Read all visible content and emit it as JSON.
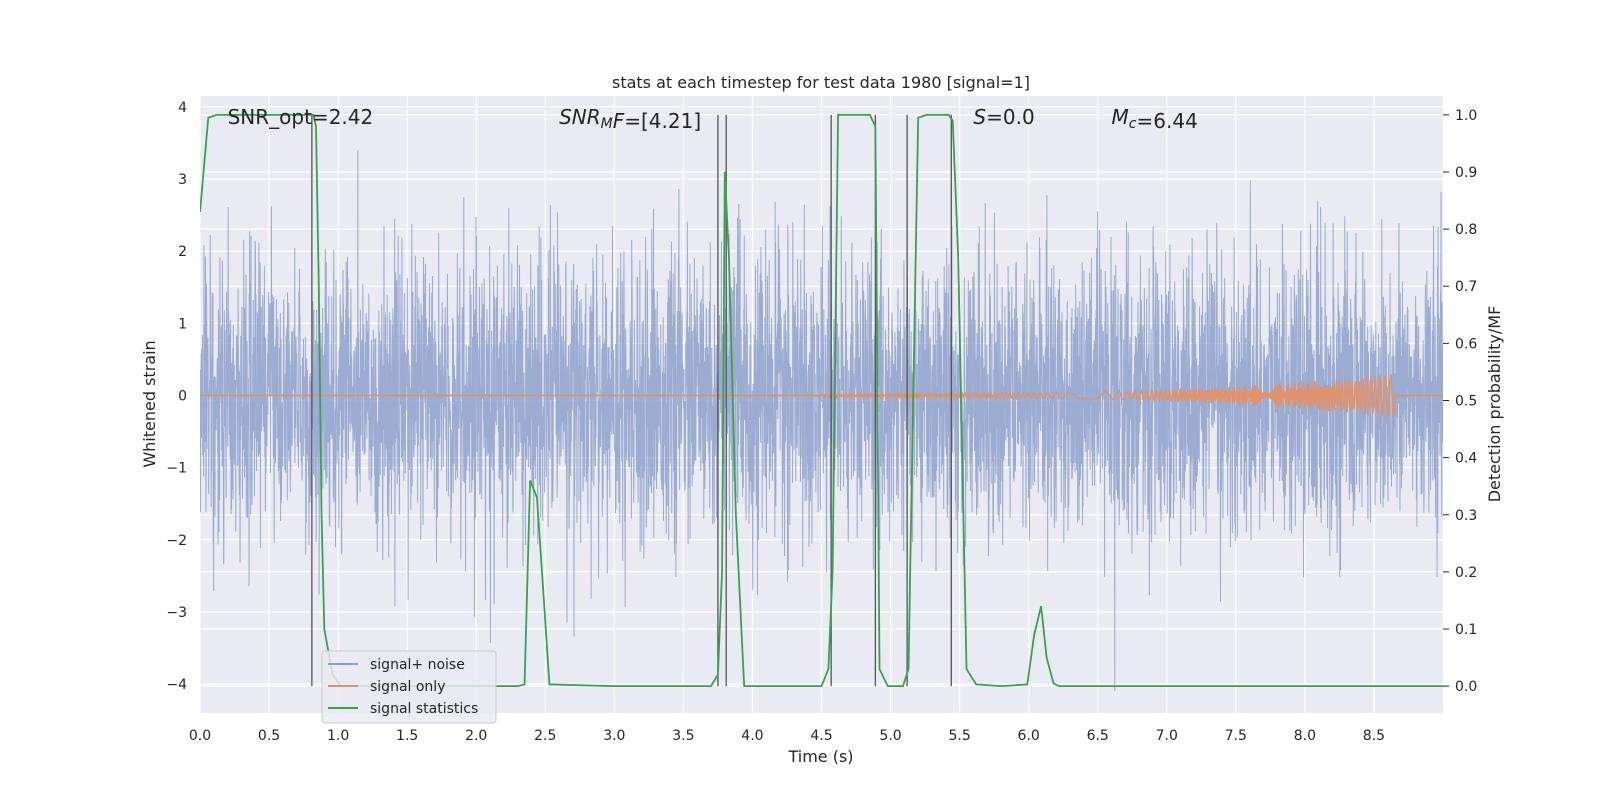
{
  "chart_data": {
    "type": "line",
    "title": "stats at each timestep for test data 1980 [signal=1]",
    "xlabel": "Time (s)",
    "ylabel": "Whitened strain",
    "y2label": "Detection probability/MF",
    "xlim": [
      0.0,
      9.0
    ],
    "ylim": [
      -4.4,
      4.15
    ],
    "y2lim": [
      -0.047,
      1.033
    ],
    "x_ticks": [
      "0.0",
      "0.5",
      "1.0",
      "1.5",
      "2.0",
      "2.5",
      "3.0",
      "3.5",
      "4.0",
      "4.5",
      "5.0",
      "5.5",
      "6.0",
      "6.5",
      "7.0",
      "7.5",
      "8.0",
      "8.5"
    ],
    "y_ticks": [
      "4",
      "3",
      "2",
      "1",
      "0",
      "−1",
      "−2",
      "−3",
      "−4"
    ],
    "y2_ticks": [
      "1.0",
      "0.9",
      "0.8",
      "0.7",
      "0.6",
      "0.5",
      "0.4",
      "0.3",
      "0.2",
      "0.1",
      "0.0"
    ],
    "grid": true,
    "legend_position": "lower-left",
    "annotations": [
      {
        "parts": [
          {
            "t": "SNR_opt=2.42",
            "style": "normal"
          }
        ],
        "x": 0.2
      },
      {
        "parts": [
          {
            "t": "SNR",
            "style": "italic"
          },
          {
            "t": "M",
            "style": "sub-italic"
          },
          {
            "t": "F",
            "style": "italic"
          },
          {
            "t": "=[4.21]",
            "style": "normal"
          }
        ],
        "x": 2.6
      },
      {
        "parts": [
          {
            "t": "S",
            "style": "italic"
          },
          {
            "t": "=0.0",
            "style": "normal"
          }
        ],
        "x": 5.6
      },
      {
        "parts": [
          {
            "t": "M",
            "style": "italic"
          },
          {
            "t": "c",
            "style": "sub-italic"
          },
          {
            "t": "=6.44",
            "style": "normal"
          }
        ],
        "x": 6.6
      }
    ],
    "series": [
      {
        "name": "signal+ noise",
        "color": "#8da0cb",
        "axis": "left",
        "kind": "noise",
        "sigma": 0.95,
        "duration": 9.0
      },
      {
        "name": "signal only",
        "color": "#e0926b",
        "axis": "left",
        "kind": "chirp",
        "start": 4.5,
        "end": 8.65,
        "peak_amplitude": 0.28
      },
      {
        "name": "signal statistics",
        "color": "#3ba04f",
        "axis": "right",
        "kind": "line",
        "x": [
          0.0,
          0.06,
          0.12,
          0.82,
          0.84,
          0.86,
          0.88,
          0.9,
          0.96,
          1.02,
          1.2,
          2.0,
          2.3,
          2.35,
          2.39,
          2.44,
          2.49,
          2.53,
          3.0,
          3.5,
          3.7,
          3.75,
          3.78,
          3.8,
          3.83,
          3.88,
          3.94,
          4.2,
          4.5,
          4.55,
          4.58,
          4.62,
          4.68,
          4.85,
          4.89,
          4.92,
          4.98,
          5.04,
          5.09,
          5.13,
          5.16,
          5.2,
          5.26,
          5.42,
          5.45,
          5.49,
          5.55,
          5.62,
          5.8,
          5.99,
          6.04,
          6.09,
          6.13,
          6.18,
          6.22,
          6.3,
          7.0,
          8.0,
          9.0
        ],
        "y": [
          0.83,
          0.995,
          1.0,
          1.0,
          0.98,
          0.7,
          0.3,
          0.1,
          0.02,
          0.0,
          0.0,
          0.0,
          0.0,
          0.003,
          0.36,
          0.33,
          0.15,
          0.003,
          0.0,
          0.0,
          0.0,
          0.02,
          0.2,
          0.9,
          0.75,
          0.3,
          0.0,
          0.0,
          0.0,
          0.03,
          0.2,
          1.0,
          1.0,
          1.0,
          0.98,
          0.03,
          0.0,
          0.0,
          0.0,
          0.03,
          0.45,
          0.995,
          1.0,
          1.0,
          0.99,
          0.75,
          0.03,
          0.003,
          0.0,
          0.003,
          0.09,
          0.14,
          0.05,
          0.005,
          0.0,
          0.0,
          0.0,
          0.0,
          0.0
        ]
      }
    ],
    "vlines": {
      "color": "#555555",
      "x": [
        0.81,
        3.75,
        3.81,
        4.57,
        4.89,
        5.12,
        5.44
      ]
    }
  }
}
